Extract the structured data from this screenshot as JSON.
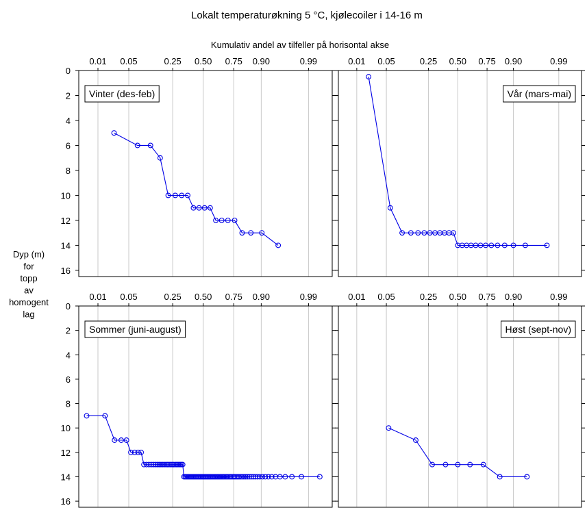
{
  "chart_data": {
    "type": "scatter",
    "title": "Lokalt temperaturøkning 5 °C, kjølecoiler i 14-16 m",
    "xlabel": "Kumulativ andel av tilfeller på horisontal akse",
    "ylabel_lines": [
      "Dyp (m)",
      "for",
      "topp",
      "av",
      "homogent",
      "lag"
    ],
    "x_scale": "normal-probability",
    "x_ticks": [
      0.01,
      0.05,
      0.25,
      0.5,
      0.75,
      0.9,
      0.99
    ],
    "x_tick_labels": [
      "0.01",
      "0.05",
      "0.25",
      "0.50",
      "0.75",
      "0.90",
      "0.99"
    ],
    "y_ticks": [
      0,
      2,
      4,
      6,
      8,
      10,
      12,
      14,
      16
    ],
    "y_tick_labels": [
      "0",
      "2",
      "4",
      "6",
      "8",
      "10",
      "12",
      "14",
      "16"
    ],
    "ylim": [
      0,
      16.5
    ],
    "y_inverted": true,
    "grid": "vertical",
    "series_color": "#0000e6",
    "panels": [
      {
        "name": "Vinter (des-feb)",
        "label_position": "top-left",
        "x": [
          0.0244,
          0.0732,
          0.122,
          0.1707,
          0.2195,
          0.2683,
          0.3171,
          0.3659,
          0.4146,
          0.4634,
          0.5122,
          0.561,
          0.6098,
          0.6585,
          0.7073,
          0.7561,
          0.8049,
          0.8537,
          0.9024,
          0.9512
        ],
        "y": [
          5,
          6,
          6,
          7,
          10,
          10,
          10,
          10,
          11,
          11,
          11,
          11,
          12,
          12,
          12,
          12,
          13,
          13,
          13,
          14
        ]
      },
      {
        "name": "Vår (mars-mai)",
        "label_position": "top-right",
        "x": [
          0.02,
          0.06,
          0.1,
          0.14,
          0.18,
          0.22,
          0.26,
          0.3,
          0.34,
          0.38,
          0.42,
          0.46,
          0.5,
          0.54,
          0.58,
          0.62,
          0.66,
          0.7,
          0.74,
          0.78,
          0.82,
          0.86,
          0.9,
          0.94,
          0.98
        ],
        "y": [
          0.5,
          11,
          13,
          13,
          13,
          13,
          13,
          13,
          13,
          13,
          13,
          13,
          14,
          14,
          14,
          14,
          14,
          14,
          14,
          14,
          14,
          14,
          14,
          14,
          14
        ]
      },
      {
        "name": "Sommer (juni-august)",
        "label_position": "top-left",
        "x": [
          0.005,
          0.015,
          0.025,
          0.035,
          0.045,
          0.055,
          0.065,
          0.075,
          0.085,
          0.095,
          0.105,
          0.115,
          0.125,
          0.135,
          0.145,
          0.155,
          0.165,
          0.175,
          0.185,
          0.195,
          0.205,
          0.215,
          0.225,
          0.235,
          0.245,
          0.255,
          0.265,
          0.275,
          0.285,
          0.295,
          0.305,
          0.315,
          0.325,
          0.335,
          0.345,
          0.355,
          0.365,
          0.375,
          0.385,
          0.395,
          0.405,
          0.415,
          0.425,
          0.435,
          0.445,
          0.455,
          0.465,
          0.475,
          0.485,
          0.495,
          0.505,
          0.515,
          0.525,
          0.535,
          0.545,
          0.555,
          0.565,
          0.575,
          0.585,
          0.595,
          0.605,
          0.615,
          0.625,
          0.635,
          0.645,
          0.655,
          0.665,
          0.675,
          0.685,
          0.695,
          0.705,
          0.715,
          0.725,
          0.735,
          0.745,
          0.755,
          0.765,
          0.775,
          0.785,
          0.795,
          0.805,
          0.815,
          0.825,
          0.835,
          0.845,
          0.855,
          0.865,
          0.875,
          0.885,
          0.895,
          0.905,
          0.915,
          0.925,
          0.935,
          0.945,
          0.955,
          0.965,
          0.975,
          0.985,
          0.995
        ],
        "y": [
          9,
          9,
          11,
          11,
          11,
          12,
          12,
          12,
          12,
          13,
          13,
          13,
          13,
          13,
          13,
          13,
          13,
          13,
          13,
          13,
          13,
          13,
          13,
          13,
          13,
          13,
          13,
          13,
          13,
          13,
          13,
          13,
          13,
          14,
          14,
          14,
          14,
          14,
          14,
          14,
          14,
          14,
          14,
          14,
          14,
          14,
          14,
          14,
          14,
          14,
          14,
          14,
          14,
          14,
          14,
          14,
          14,
          14,
          14,
          14,
          14,
          14,
          14,
          14,
          14,
          14,
          14,
          14,
          14,
          14,
          14,
          14,
          14,
          14,
          14,
          14,
          14,
          14,
          14,
          14,
          14,
          14,
          14,
          14,
          14,
          14,
          14,
          14,
          14,
          14,
          14,
          14,
          14,
          14,
          14,
          14,
          14,
          14,
          14,
          14
        ]
      },
      {
        "name": "Høst (sept-nov)",
        "label_position": "top-right",
        "x": [
          0.0556,
          0.1667,
          0.2778,
          0.3889,
          0.5,
          0.6111,
          0.7222,
          0.8333,
          0.9444
        ],
        "y": [
          10,
          11,
          13,
          13,
          13,
          13,
          13,
          14,
          14
        ]
      }
    ]
  }
}
